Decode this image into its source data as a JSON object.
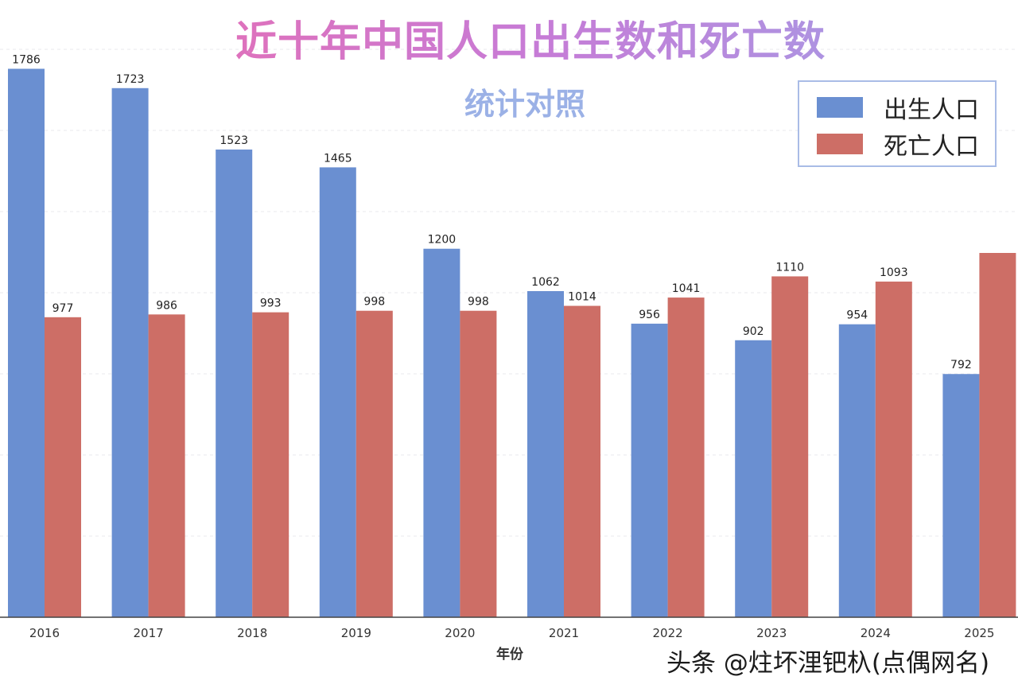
{
  "chart_data": {
    "type": "bar",
    "title": "近十年中国人口出生数和死亡数",
    "subtitle": "统计对照",
    "xlabel": "年份",
    "ylabel": "",
    "categories": [
      "2016",
      "2017",
      "2018",
      "2019",
      "2020",
      "2021",
      "2022",
      "2023",
      "2024",
      "2025"
    ],
    "series": [
      {
        "name": "出生人口",
        "color": "#6a8fd1",
        "values": [
          1786,
          1723,
          1523,
          1465,
          1200,
          1062,
          956,
          902,
          954,
          792
        ]
      },
      {
        "name": "死亡人口",
        "color": "#cd6e66",
        "values": [
          977,
          986,
          993,
          998,
          998,
          1014,
          1041,
          1110,
          1093,
          null
        ]
      }
    ],
    "ylim": [
      0,
      2010
    ],
    "grid": true,
    "legend_position": "top-right"
  },
  "watermark": "头条 @炷坏浬钯杁(点偶网名)"
}
